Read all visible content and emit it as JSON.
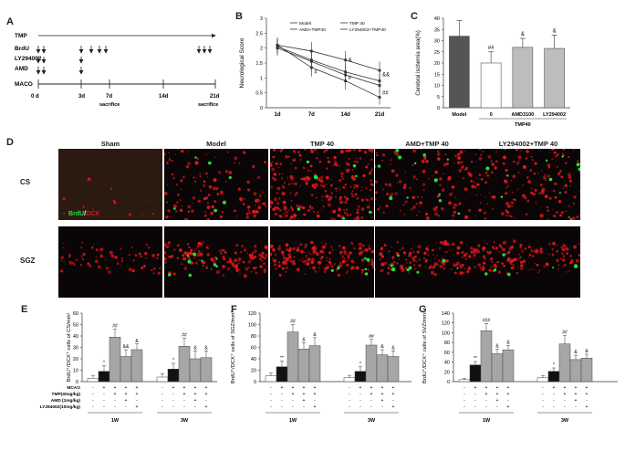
{
  "panel_labels": {
    "A": "A",
    "B": "B",
    "C": "C",
    "D": "D",
    "E": "E",
    "F": "F",
    "G": "G"
  },
  "timeline": {
    "rows": [
      "TMP",
      "BrdU",
      "LY294002",
      "AMD",
      "MACO"
    ],
    "days": [
      "0 d",
      "3d",
      "7d",
      "14d",
      "21d"
    ],
    "sacrifice": [
      "sacrifice",
      "sacrifice"
    ]
  },
  "panelD": {
    "columns": [
      "Sham",
      "Model",
      "TMP 40",
      "AMD+TMP 40",
      "LY294002+TMP 40"
    ],
    "rows": [
      "CS",
      "SGZ"
    ],
    "stain_brdu": "BrdU",
    "stain_sep": "/",
    "stain_dcx": "DCX",
    "colors": {
      "green": "#22e03a",
      "red": "#e3171b",
      "bg": "#0a0506"
    }
  },
  "treat_table": {
    "rows": [
      "MCAO",
      "TMP(40ug/kg)",
      "AMD (1mg/kg)",
      "LY294002(10mg/kg)"
    ],
    "week1": [
      [
        "-",
        "+",
        "+",
        "+",
        "+"
      ],
      [
        "-",
        "-",
        "+",
        "+",
        "+"
      ],
      [
        "-",
        "-",
        "-",
        "+",
        "-"
      ],
      [
        "-",
        "-",
        "-",
        "-",
        "+"
      ]
    ],
    "week3": [
      [
        "-",
        "+",
        "+",
        "+",
        "+"
      ],
      [
        "-",
        "-",
        "+",
        "+",
        "+"
      ],
      [
        "-",
        "-",
        "-",
        "+",
        "-"
      ],
      [
        "-",
        "-",
        "-",
        "-",
        "+"
      ]
    ],
    "groups": [
      "1W",
      "3W"
    ]
  },
  "chart_data": [
    {
      "panel": "B",
      "type": "line",
      "ylabel": "Neurological Score",
      "x": [
        "1d",
        "7d",
        "14d",
        "21d"
      ],
      "ylim": [
        0,
        3
      ],
      "yticks": [
        0,
        0.5,
        1,
        1.5,
        2,
        2.5,
        3
      ],
      "legend": [
        "Model",
        "TMP 40",
        "AMD+TMP40",
        "LY294002+TMP40"
      ],
      "series": [
        {
          "name": "Model",
          "values": [
            2.1,
            1.9,
            1.6,
            1.25
          ],
          "err": [
            0.25,
            0.3,
            0.3,
            0.3
          ]
        },
        {
          "name": "TMP 40",
          "values": [
            2.1,
            1.35,
            0.9,
            0.35
          ],
          "err": [
            0.25,
            0.3,
            0.3,
            0.25
          ]
        },
        {
          "name": "AMD+TMP40",
          "values": [
            2.05,
            1.6,
            1.2,
            0.9
          ],
          "err": [
            0.25,
            0.3,
            0.3,
            0.25
          ]
        },
        {
          "name": "LY294002+TMP40",
          "values": [
            2.0,
            1.55,
            1.1,
            0.75
          ],
          "err": [
            0.25,
            0.3,
            0.3,
            0.25
          ]
        }
      ],
      "annotations": [
        {
          "x": "7d",
          "y": 1.15,
          "text": "#"
        },
        {
          "x": "14d",
          "y": 0.95,
          "text": "#"
        },
        {
          "x": "14d",
          "y": 1.55,
          "text": "&"
        },
        {
          "x": "21d",
          "y": 0.45,
          "text": "##"
        },
        {
          "x": "21d",
          "y": 1.05,
          "text": "&&"
        }
      ]
    },
    {
      "panel": "C",
      "type": "bar",
      "ylabel": "Cerebral ischemia area(%)",
      "categories": [
        "Model",
        "0",
        "AMD3100",
        "LY294002"
      ],
      "group_label": "TMP40",
      "values": [
        32,
        20,
        27,
        26.5
      ],
      "err": [
        7,
        5,
        4,
        6
      ],
      "colors": [
        "#555555",
        "#ffffff",
        "#bdbdbd",
        "#bdbdbd"
      ],
      "ylim": [
        0,
        40
      ],
      "yticks": [
        0,
        5,
        10,
        15,
        20,
        25,
        30,
        35,
        40
      ],
      "annotations": [
        "",
        "##",
        "&",
        "&"
      ]
    },
    {
      "panel": "E",
      "type": "bar",
      "ylabel": "BrdU⁺/DCX⁺ cells of CS/mm²",
      "ylim": [
        0,
        60
      ],
      "yticks": [
        0,
        10,
        20,
        30,
        40,
        50,
        60
      ],
      "groups": [
        "1W",
        "3W"
      ],
      "values": [
        [
          3,
          9,
          39,
          22,
          28
        ],
        [
          4,
          11,
          31,
          20,
          21
        ]
      ],
      "err": [
        [
          2,
          5,
          7,
          6,
          5
        ],
        [
          3,
          5,
          7,
          7,
          6
        ]
      ],
      "annotations": [
        [
          "",
          "*",
          "##",
          "&&",
          "&"
        ],
        [
          "",
          "*",
          "##",
          "&",
          "&"
        ]
      ]
    },
    {
      "panel": "F",
      "type": "bar",
      "ylabel": "BrdU⁺/DCX⁺ cells of SGZ/mm²",
      "ylim": [
        0,
        120
      ],
      "yticks": [
        0,
        20,
        40,
        60,
        80,
        100,
        120
      ],
      "groups": [
        "1W",
        "3W"
      ],
      "values": [
        [
          10,
          26,
          87,
          57,
          63
        ],
        [
          7,
          18,
          64,
          47,
          44
        ]
      ],
      "err": [
        [
          5,
          10,
          13,
          11,
          14
        ],
        [
          4,
          8,
          10,
          9,
          10
        ]
      ],
      "annotations": [
        [
          "",
          "**",
          "##",
          "&",
          "&"
        ],
        [
          "",
          "*",
          "##",
          "&",
          "&"
        ]
      ]
    },
    {
      "panel": "G",
      "type": "bar",
      "ylabel": "BrdU⁺/DCX⁺ cells of SVZ/mm²",
      "ylim": [
        0,
        140
      ],
      "yticks": [
        0,
        20,
        40,
        60,
        80,
        100,
        120,
        140
      ],
      "groups": [
        "1W",
        "3W"
      ],
      "values": [
        [
          4,
          34,
          104,
          57,
          65
        ],
        [
          8,
          21,
          77,
          45,
          48
        ]
      ],
      "err": [
        [
          3,
          7,
          15,
          9,
          9
        ],
        [
          4,
          7,
          17,
          9,
          8
        ]
      ],
      "annotations": [
        [
          "",
          "**",
          "###",
          "&",
          "&"
        ],
        [
          "",
          "*",
          "##",
          "&",
          "&"
        ]
      ]
    }
  ]
}
